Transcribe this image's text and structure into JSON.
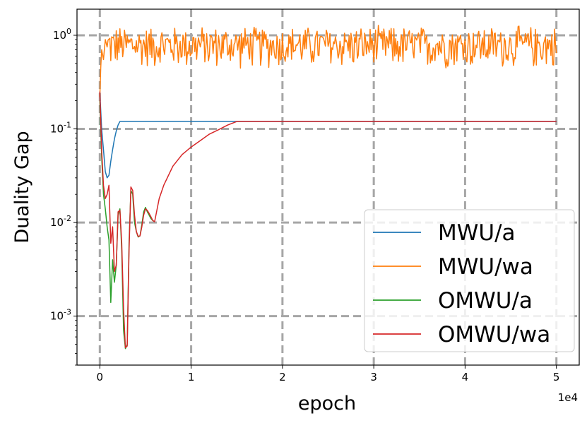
{
  "chart_data": {
    "type": "line",
    "title": "",
    "xlabel": "epoch",
    "ylabel": "Duality Gap",
    "x_offset_label": "1e4",
    "x_tick_labels": [
      "0",
      "1",
      "2",
      "3",
      "4",
      "5"
    ],
    "x_ticks": [
      0,
      10000,
      20000,
      30000,
      40000,
      50000
    ],
    "xlim": [
      -2500,
      52500
    ],
    "yscale": "log",
    "y_tick_labels": [
      "10^-3",
      "10^-2",
      "10^-1",
      "10^0"
    ],
    "y_ticks": [
      0.001,
      0.01,
      0.1,
      1
    ],
    "ylim": [
      0.0003,
      1.9
    ],
    "grid": true,
    "legend_location": "lower-right",
    "series": [
      {
        "name": "MWU/a",
        "color": "#1f77b4",
        "x": [
          0,
          200,
          400,
          600,
          800,
          1000,
          1200,
          1400,
          1600,
          1800,
          2000,
          2200,
          2400,
          5000,
          10000,
          20000,
          30000,
          40000,
          50000
        ],
        "y": [
          0.25,
          0.1,
          0.06,
          0.035,
          0.03,
          0.032,
          0.045,
          0.06,
          0.078,
          0.095,
          0.11,
          0.12,
          0.12,
          0.12,
          0.12,
          0.12,
          0.12,
          0.12,
          0.12
        ]
      },
      {
        "name": "MWU/wa",
        "color": "#ff7f0e",
        "x": [
          0,
          100,
          200,
          400,
          600,
          800
        ],
        "y": [
          0.22,
          0.45,
          0.7,
          0.55,
          0.9,
          0.75
        ],
        "noise": {
          "x_start": 800,
          "x_end": 50000,
          "step": 100,
          "base": 0.8,
          "low": 0.42,
          "high": 1.3
        }
      },
      {
        "name": "OMWU/a",
        "color": "#2ca02c",
        "x": [
          0,
          200,
          400,
          600,
          800,
          1000,
          1200,
          1400,
          1600,
          1800,
          2000,
          2200,
          2400,
          2600,
          2800,
          3000,
          3200,
          3400,
          3600,
          3800,
          4000,
          4200,
          4400,
          4600,
          4800,
          5000,
          5200,
          5400,
          5600,
          5800,
          6000
        ],
        "y": [
          0.2,
          0.05,
          0.02,
          0.014,
          0.009,
          0.0065,
          0.0014,
          0.004,
          0.0023,
          0.0035,
          0.012,
          0.014,
          0.005,
          0.0007,
          0.00045,
          0.0005,
          0.006,
          0.022,
          0.02,
          0.01,
          0.008,
          0.007,
          0.0072,
          0.0095,
          0.013,
          0.0145,
          0.013,
          0.012,
          0.011,
          0.0105,
          0.0102
        ]
      },
      {
        "name": "OMWU/wa",
        "color": "#d62728",
        "x": [
          0,
          200,
          400,
          600,
          800,
          1000,
          1200,
          1400,
          1600,
          1800,
          2000,
          2200,
          2400,
          2600,
          2800,
          3000,
          3200,
          3400,
          3600,
          3800,
          4000,
          4200,
          4400,
          4600,
          4800,
          5000,
          5200,
          5400,
          5600,
          5800,
          6000,
          6500,
          7000,
          8000,
          9000,
          10000,
          11000,
          12000,
          13000,
          14000,
          15000,
          20000,
          30000,
          40000,
          50000
        ],
        "y": [
          0.25,
          0.06,
          0.025,
          0.018,
          0.02,
          0.025,
          0.006,
          0.009,
          0.003,
          0.0035,
          0.013,
          0.0135,
          0.006,
          0.0012,
          0.00046,
          0.00048,
          0.005,
          0.024,
          0.022,
          0.012,
          0.008,
          0.0071,
          0.0072,
          0.009,
          0.012,
          0.014,
          0.0135,
          0.0125,
          0.0115,
          0.0105,
          0.0102,
          0.018,
          0.025,
          0.04,
          0.053,
          0.064,
          0.075,
          0.088,
          0.098,
          0.11,
          0.12,
          0.12,
          0.12,
          0.12,
          0.12
        ]
      }
    ]
  }
}
